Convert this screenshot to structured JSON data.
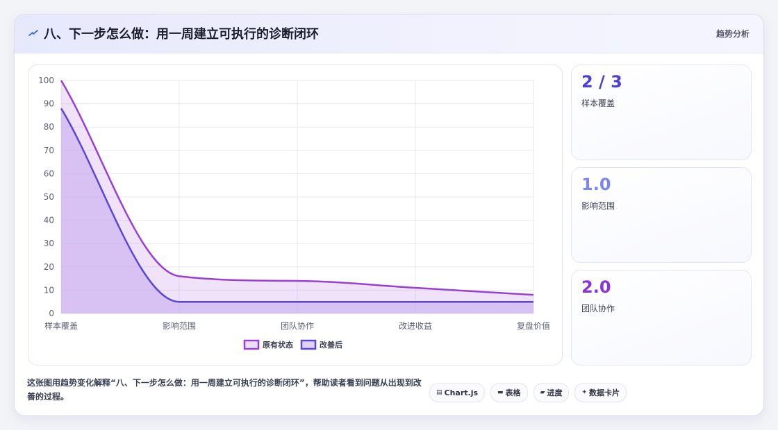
{
  "header": {
    "title": "八、下一步怎么做：用一周建立可执行的诊断闭环",
    "tag": "趋势分析",
    "icon": "bolt-icon"
  },
  "chart_data": {
    "type": "area",
    "categories": [
      "样本覆盖",
      "影响范围",
      "团队协作",
      "改进收益",
      "复盘价值"
    ],
    "series": [
      {
        "name": "原有状态",
        "values": [
          100,
          16,
          14,
          11,
          8
        ],
        "color": "#9a3fd6"
      },
      {
        "name": "改善后",
        "values": [
          88,
          5,
          5,
          5,
          5
        ],
        "color": "#5a46d8"
      }
    ],
    "ylim": [
      0,
      100
    ],
    "yticks": [
      0,
      10,
      20,
      30,
      40,
      50,
      60,
      70,
      80,
      90,
      100
    ],
    "grid": true,
    "legend": "bottom",
    "smooth": true
  },
  "stats": [
    {
      "value": "2 / 3",
      "label": "样本覆盖",
      "color": "#4a3fd6"
    },
    {
      "value": "1.0",
      "label": "影响范围",
      "color": "#7f86ea"
    },
    {
      "value": "2.0",
      "label": "团队协作",
      "color": "#8a35d2"
    }
  ],
  "footer": {
    "description": "这张图用趋势变化解释“八、下一步怎么做：用一周建立可执行的诊断闭环”，帮助读者看到问题从出现到改善的过程。",
    "chips": [
      {
        "icon": "chart-icon",
        "glyph": "▤",
        "label": "Chart.js"
      },
      {
        "icon": "table-icon",
        "glyph": "▬",
        "label": "表格"
      },
      {
        "icon": "progress-icon",
        "glyph": "▰",
        "label": "进度"
      },
      {
        "icon": "sparkle-icon",
        "glyph": "✦",
        "label": "数据卡片"
      }
    ]
  }
}
